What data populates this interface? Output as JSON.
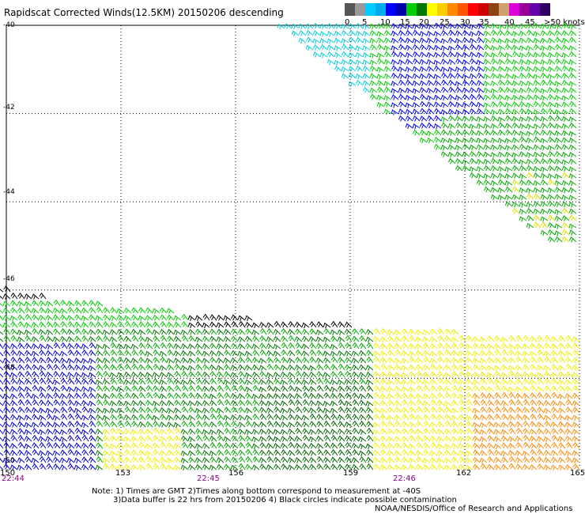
{
  "title": "Rapidscat Corrected Winds(12.5KM) 20150206 descending",
  "scale": {
    "colors": [
      "#555555",
      "#999999",
      "#00ccff",
      "#00aaee",
      "#0000ff",
      "#0000aa",
      "#00cc00",
      "#007700",
      "#ffff00",
      "#ffcc00",
      "#ff8800",
      "#ff5500",
      "#ff0000",
      "#cc0000",
      "#8b4513",
      "#d2a070",
      "#dd00dd",
      "#990099",
      "#6600aa",
      "#330066"
    ],
    "labels": [
      "0",
      "5",
      "10",
      "15",
      "20",
      "25",
      "30",
      "35",
      "40",
      "45",
      ">50 knots"
    ]
  },
  "latitudes": [
    "-40",
    "-42",
    "-44",
    "-46",
    "-48",
    "-50"
  ],
  "longitudes": [
    "150",
    "153",
    "156",
    "159",
    "162",
    "165"
  ],
  "times": [
    "22:44",
    "22:45",
    "22:46"
  ],
  "notes": [
    "Note: 1) Times are GMT 2)Times along bottom correspond to measurement at -40S",
    "3)Data buffer is 22 hrs from 20150206 4) Black circles indicate possible contamination",
    "NOAA/NESDIS/Office of Research and Applications"
  ]
}
